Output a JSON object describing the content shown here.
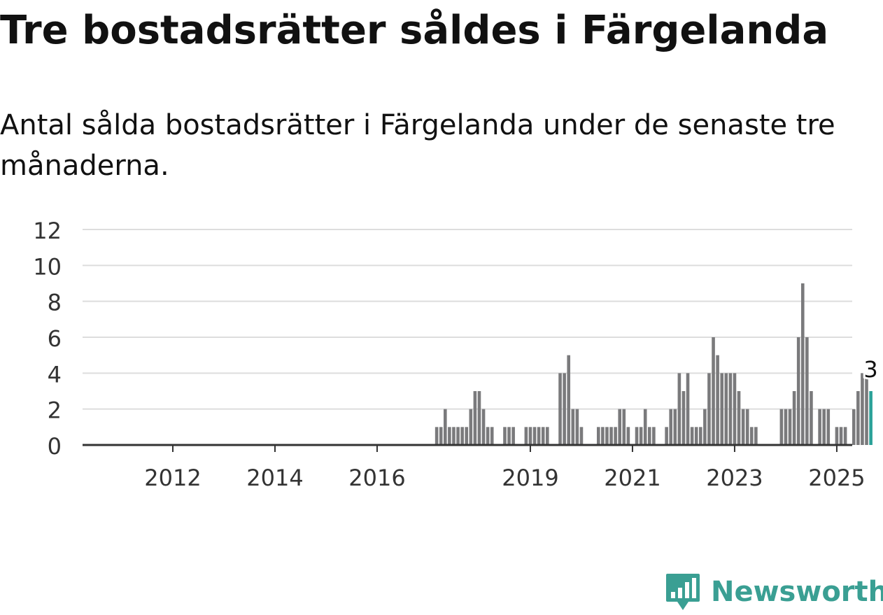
{
  "title": "Tre bostadsrätter såldes i Färgelanda",
  "subtitle": "Antal sålda bostadsrätter i Färgelanda under de senaste tre månaderna.",
  "brand": {
    "name": "Newsworthy",
    "color": "#3a9f93",
    "icon": "newsworthy-logo-icon"
  },
  "chart_data": {
    "type": "bar",
    "title": "",
    "xlabel": "",
    "ylabel": "",
    "ylim": [
      0,
      12
    ],
    "yticks": [
      "0",
      "2",
      "4",
      "6",
      "8",
      "10",
      "12"
    ],
    "xticks": [
      "2012",
      "2014",
      "2016",
      "2019",
      "2021",
      "2023",
      "2025"
    ],
    "grid": true,
    "colors": {
      "bar": "#7a7a7c",
      "highlight": "#2aa198",
      "grid": "#dddddd",
      "axis": "#333333"
    },
    "highlight_label": "3",
    "values": [
      0,
      0,
      0,
      0,
      0,
      0,
      0,
      0,
      0,
      0,
      0,
      0,
      0,
      0,
      0,
      0,
      0,
      0,
      0,
      0,
      0,
      0,
      0,
      0,
      0,
      0,
      0,
      0,
      0,
      0,
      0,
      0,
      0,
      0,
      0,
      0,
      0,
      0,
      0,
      0,
      0,
      0,
      0,
      0,
      0,
      0,
      0,
      0,
      0,
      0,
      0,
      0,
      0,
      0,
      0,
      0,
      0,
      0,
      0,
      0,
      0,
      0,
      0,
      0,
      0,
      0,
      0,
      0,
      0,
      0,
      0,
      0,
      0,
      0,
      1,
      1,
      2,
      1,
      1,
      1,
      1,
      1,
      2,
      3,
      3,
      2,
      1,
      1,
      0,
      0,
      1,
      1,
      1,
      0,
      0,
      1,
      1,
      1,
      1,
      1,
      1,
      0,
      0,
      4,
      4,
      5,
      2,
      2,
      1,
      0,
      0,
      0,
      1,
      1,
      1,
      1,
      1,
      2,
      2,
      1,
      0,
      1,
      1,
      2,
      1,
      1,
      0,
      0,
      1,
      2,
      2,
      4,
      3,
      4,
      1,
      1,
      1,
      2,
      4,
      6,
      5,
      4,
      4,
      4,
      4,
      3,
      2,
      2,
      1,
      1,
      0,
      0,
      0,
      0,
      0,
      2,
      2,
      2,
      3,
      6,
      9,
      6,
      3,
      0,
      2,
      2,
      2,
      0,
      1,
      1,
      1,
      0,
      2,
      3,
      4,
      4,
      3
    ]
  }
}
